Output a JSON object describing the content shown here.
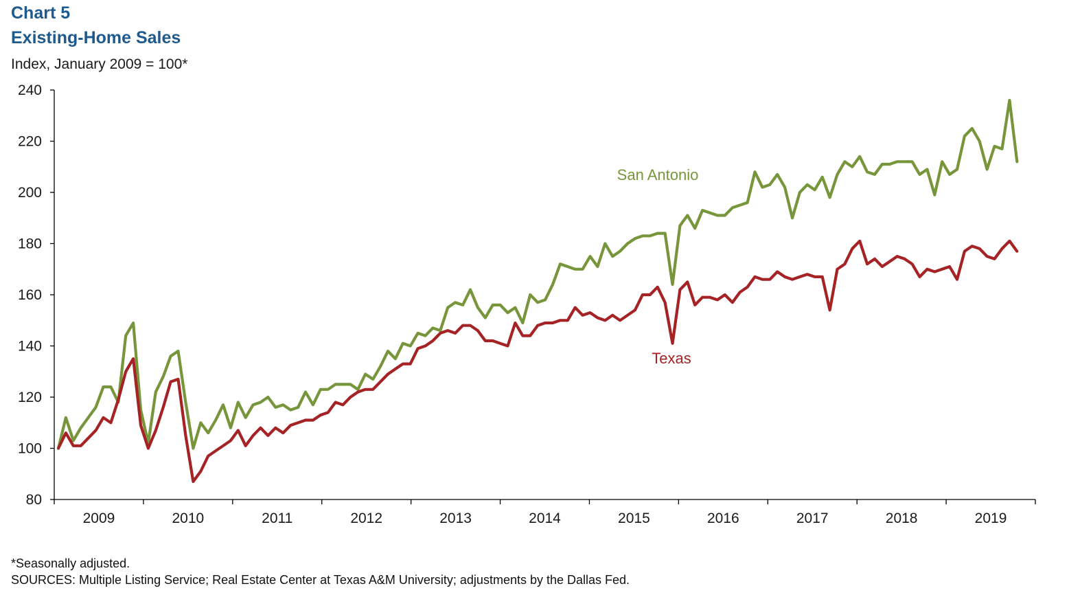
{
  "header": {
    "chart_number": "Chart 5",
    "title": "Existing-Home Sales",
    "unit": "Index, January 2009 = 100*"
  },
  "footer": {
    "note": "*Seasonally adjusted.",
    "sources": "SOURCES: Multiple Listing Service; Real Estate Center at Texas A&M University; adjustments by the Dallas Fed."
  },
  "chart_data": {
    "type": "line",
    "title": "Existing-Home Sales",
    "ylabel": "Index, January 2009 = 100*",
    "ylim": [
      80,
      240
    ],
    "yticks": [
      80,
      100,
      120,
      140,
      160,
      180,
      200,
      220,
      240
    ],
    "x_start": "2009-01",
    "x_end": "2019-04",
    "x_year_labels": [
      "2009",
      "2010",
      "2011",
      "2012",
      "2013",
      "2014",
      "2015",
      "2016",
      "2017",
      "2018",
      "2019"
    ],
    "grid": false,
    "legend": "inline labels",
    "series": [
      {
        "name": "San Antonio",
        "color": "#77963b",
        "values": [
          100,
          112,
          103,
          108,
          112,
          116,
          124,
          124,
          118,
          144,
          149,
          115,
          102,
          122,
          128,
          136,
          138,
          118,
          100,
          110,
          106,
          111,
          117,
          108,
          118,
          112,
          117,
          118,
          120,
          116,
          117,
          115,
          116,
          122,
          117,
          123,
          123,
          125,
          125,
          125,
          123,
          129,
          127,
          132,
          138,
          135,
          141,
          140,
          145,
          144,
          147,
          146,
          155,
          157,
          156,
          162,
          155,
          151,
          156,
          156,
          153,
          155,
          149,
          160,
          157,
          158,
          164,
          172,
          171,
          170,
          170,
          175,
          171,
          180,
          175,
          177,
          180,
          182,
          183,
          183,
          184,
          184,
          164,
          187,
          191,
          186,
          193,
          192,
          191,
          191,
          194,
          195,
          196,
          208,
          202,
          203,
          207,
          202,
          190,
          200,
          203,
          201,
          206,
          198,
          207,
          212,
          210,
          214,
          208,
          207,
          211,
          211,
          212,
          212,
          212,
          207,
          209,
          199,
          212,
          207,
          209,
          222,
          225,
          220,
          209,
          218,
          217,
          236,
          212
        ],
        "label_pos": "above"
      },
      {
        "name": "Texas",
        "color": "#a52225",
        "values": [
          100,
          106,
          101,
          101,
          104,
          107,
          112,
          110,
          119,
          130,
          135,
          109,
          100,
          107,
          116,
          126,
          127,
          105,
          87,
          91,
          97,
          99,
          101,
          103,
          107,
          101,
          105,
          108,
          105,
          108,
          106,
          109,
          110,
          111,
          111,
          113,
          114,
          118,
          117,
          120,
          122,
          123,
          123,
          126,
          129,
          131,
          133,
          133,
          139,
          140,
          142,
          145,
          146,
          145,
          148,
          148,
          146,
          142,
          142,
          141,
          140,
          149,
          144,
          144,
          148,
          149,
          149,
          150,
          150,
          155,
          152,
          153,
          151,
          150,
          152,
          150,
          152,
          154,
          160,
          160,
          163,
          157,
          141,
          162,
          165,
          156,
          159,
          159,
          158,
          160,
          157,
          161,
          163,
          167,
          166,
          166,
          169,
          167,
          166,
          167,
          168,
          167,
          167,
          154,
          170,
          172,
          178,
          181,
          172,
          174,
          171,
          173,
          175,
          174,
          172,
          167,
          170,
          169,
          170,
          171,
          166,
          177,
          179,
          178,
          175,
          174,
          178,
          181,
          177
        ],
        "label_pos": "below"
      }
    ]
  }
}
